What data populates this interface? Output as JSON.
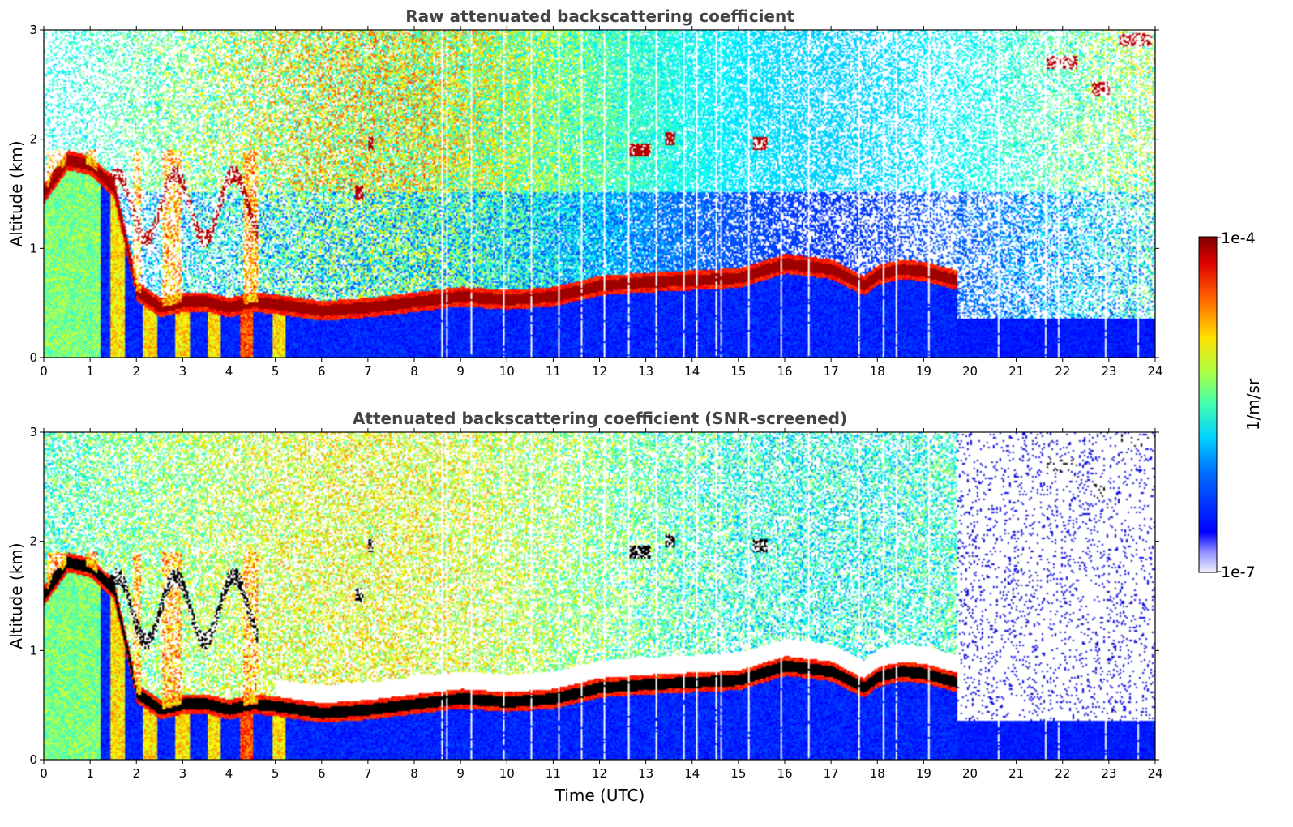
{
  "chart_data": [
    {
      "type": "heatmap",
      "title": "Raw attenuated backscattering coefficient",
      "xlabel": "",
      "ylabel": "Altitude (km)",
      "xlim": [
        0,
        24
      ],
      "ylim": [
        0,
        3
      ],
      "x_ticks": [
        "0",
        "1",
        "2",
        "3",
        "4",
        "5",
        "6",
        "7",
        "8",
        "9",
        "10",
        "11",
        "12",
        "13",
        "14",
        "15",
        "16",
        "17",
        "18",
        "19",
        "20",
        "21",
        "22",
        "23",
        "24"
      ],
      "y_ticks": [
        "0",
        "1",
        "2",
        "3"
      ],
      "screened": false,
      "layer_top_km": [
        [
          0,
          1.5
        ],
        [
          0.5,
          1.8
        ],
        [
          1,
          1.75
        ],
        [
          1.5,
          1.55
        ],
        [
          2,
          0.6
        ],
        [
          2.5,
          0.45
        ],
        [
          3,
          0.5
        ],
        [
          3.5,
          0.5
        ],
        [
          4,
          0.45
        ],
        [
          4.5,
          0.5
        ],
        [
          5,
          0.48
        ],
        [
          5.5,
          0.45
        ],
        [
          6,
          0.42
        ],
        [
          7,
          0.45
        ],
        [
          8,
          0.5
        ],
        [
          9,
          0.55
        ],
        [
          10,
          0.52
        ],
        [
          11,
          0.55
        ],
        [
          12,
          0.65
        ],
        [
          13,
          0.68
        ],
        [
          14,
          0.7
        ],
        [
          15,
          0.72
        ],
        [
          16,
          0.85
        ],
        [
          17,
          0.8
        ],
        [
          17.7,
          0.65
        ],
        [
          18,
          0.75
        ],
        [
          18.5,
          0.8
        ],
        [
          19,
          0.78
        ],
        [
          19.7,
          0.7
        ]
      ],
      "cloud_patches": [
        {
          "x": [
            6.7,
            6.9
          ],
          "y": 1.5
        },
        {
          "x": [
            7.0,
            7.1
          ],
          "y": 1.95
        },
        {
          "x": [
            12.6,
            13.1
          ],
          "y": 1.9
        },
        {
          "x": [
            13.4,
            13.6
          ],
          "y": 2.0
        },
        {
          "x": [
            15.3,
            15.6
          ],
          "y": 1.95
        },
        {
          "x": [
            21.6,
            22.3
          ],
          "y": 2.7
        },
        {
          "x": [
            22.6,
            23.0
          ],
          "y": 2.45
        },
        {
          "x": [
            23.2,
            23.9
          ],
          "y": 2.9
        }
      ]
    },
    {
      "type": "heatmap",
      "title": "Attenuated backscattering coefficient (SNR-screened)",
      "xlabel": "Time (UTC)",
      "ylabel": "Altitude (km)",
      "xlim": [
        0,
        24
      ],
      "ylim": [
        0,
        3
      ],
      "x_ticks": [
        "0",
        "1",
        "2",
        "3",
        "4",
        "5",
        "6",
        "7",
        "8",
        "9",
        "10",
        "11",
        "12",
        "13",
        "14",
        "15",
        "16",
        "17",
        "18",
        "19",
        "20",
        "21",
        "22",
        "23",
        "24"
      ],
      "y_ticks": [
        "0",
        "1",
        "2",
        "3"
      ],
      "screened": true
    }
  ],
  "colorbar": {
    "label": "1/m/sr",
    "max_label": "1e-4",
    "min_label": "1e-7",
    "scale": "log",
    "colormap": "jet"
  },
  "colors": {
    "title": "#444444",
    "low": "#0000ff",
    "high": "#800000",
    "saturated": "#000000"
  }
}
